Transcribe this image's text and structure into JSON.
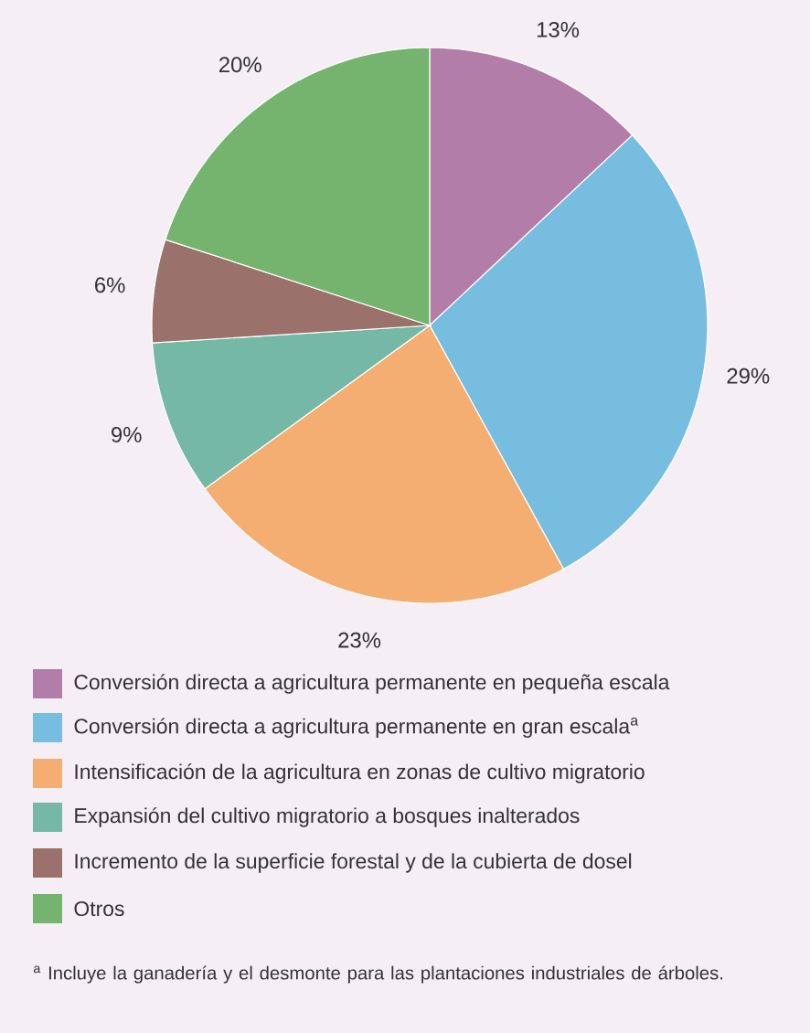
{
  "chart_data": {
    "type": "pie",
    "categories": [
      "Conversión directa a agricultura permanente en pequeña escala",
      "Conversión directa a agricultura permanente en gran escala$^{a}$",
      "Intensificación de la agricultura en zonas de cultivo migratorio",
      "Expansión del cultivo migratorio a bosques inalterados",
      "Incremento de la superficie forestal y de la cubierta de dosel",
      "Otros"
    ],
    "values": [
      13,
      29,
      23,
      9,
      6,
      20
    ],
    "colors": [
      "#b27ea9",
      "#77bddf",
      "#f4ae72",
      "#74b8a5",
      "#9a716b",
      "#74b46e"
    ],
    "value_labels": [
      "13%",
      "29%",
      "23%",
      "9%",
      "6%",
      "20%"
    ],
    "legend": "bottom",
    "annotations": [
      "$^{a}$ Incluye la ganadería y el desmonte para las plantaciones industriales de árboles."
    ]
  }
}
